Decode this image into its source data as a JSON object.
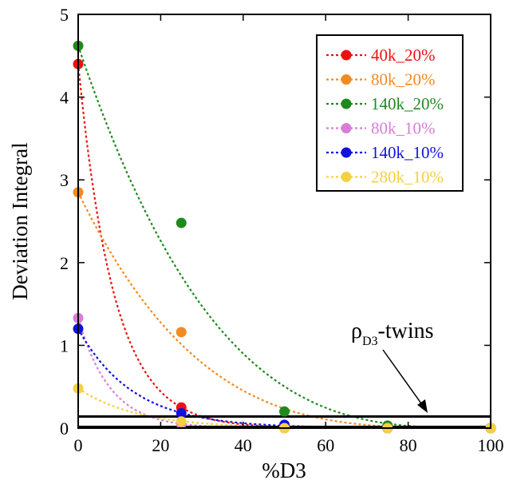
{
  "chart_data": {
    "type": "scatter",
    "xlabel": "%D3",
    "ylabel": "Deviation Integral",
    "xlim": [
      0,
      100
    ],
    "ylim": [
      0,
      5
    ],
    "xticks": [
      0,
      20,
      40,
      60,
      80,
      100
    ],
    "yticks": [
      0,
      1,
      2,
      3,
      4,
      5
    ],
    "grid": false,
    "legend_position": "top-right",
    "series": [
      {
        "name": "40k_20%",
        "color": "#ee1111",
        "x": [
          0,
          25,
          50,
          75,
          100
        ],
        "y": [
          4.4,
          0.25,
          0.0,
          0.0,
          0.0
        ],
        "fit": {
          "a": 4.4,
          "k": 0.115
        }
      },
      {
        "name": "80k_20%",
        "color": "#f28a22",
        "x": [
          0,
          25,
          50,
          75,
          100
        ],
        "y": [
          2.85,
          1.16,
          0.0,
          0.0,
          0.0
        ],
        "fit": {
          "a": 2.85,
          "b": 0.14,
          "p": 3.6
        }
      },
      {
        "name": "140k_20%",
        "color": "#1e8a1e",
        "x": [
          0,
          25,
          50,
          75,
          100
        ],
        "y": [
          4.62,
          2.48,
          0.2,
          0.03,
          0.0
        ],
        "fit": {
          "a": 4.62,
          "b": 0.1,
          "p": 3.2
        }
      },
      {
        "name": "80k_10%",
        "color": "#d77dd8",
        "x": [
          0,
          25,
          50,
          75,
          100
        ],
        "y": [
          1.33,
          0.05,
          0.0,
          0.0,
          0.0
        ],
        "fit": {
          "a": 1.33,
          "k": 0.13
        }
      },
      {
        "name": "140k_10%",
        "color": "#1111dd",
        "x": [
          0,
          25,
          50,
          75,
          100
        ],
        "y": [
          1.2,
          0.18,
          0.04,
          0.0,
          0.0
        ],
        "fit": {
          "a": 1.2,
          "k": 0.075
        }
      },
      {
        "name": "280k_10%",
        "color": "#f5d040",
        "x": [
          0,
          25,
          50,
          75,
          100
        ],
        "y": [
          0.48,
          0.08,
          0.0,
          0.0,
          0.0
        ],
        "fit": {
          "a": 0.48,
          "k": 0.07
        }
      }
    ],
    "reference_line": {
      "y": 0.14,
      "color": "#000000"
    },
    "annotation": {
      "base": "ρ",
      "subscript": "D3",
      "suffix": "-twins"
    }
  }
}
